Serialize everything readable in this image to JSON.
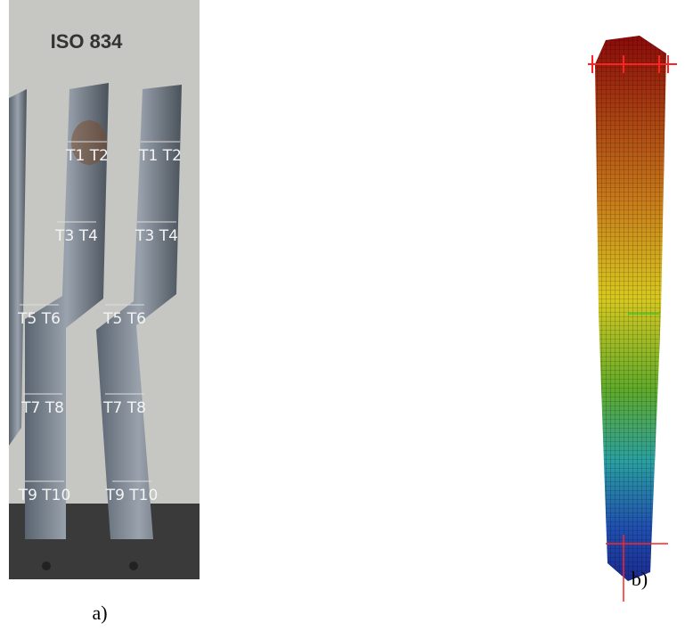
{
  "panels": [
    {
      "label": "a)",
      "sign": "ISO 834",
      "marks": [
        "T1 T2",
        "T3 T4",
        "T5 T6",
        "T7 T8",
        "T9 T10"
      ]
    },
    {
      "label": "b)"
    }
  ]
}
